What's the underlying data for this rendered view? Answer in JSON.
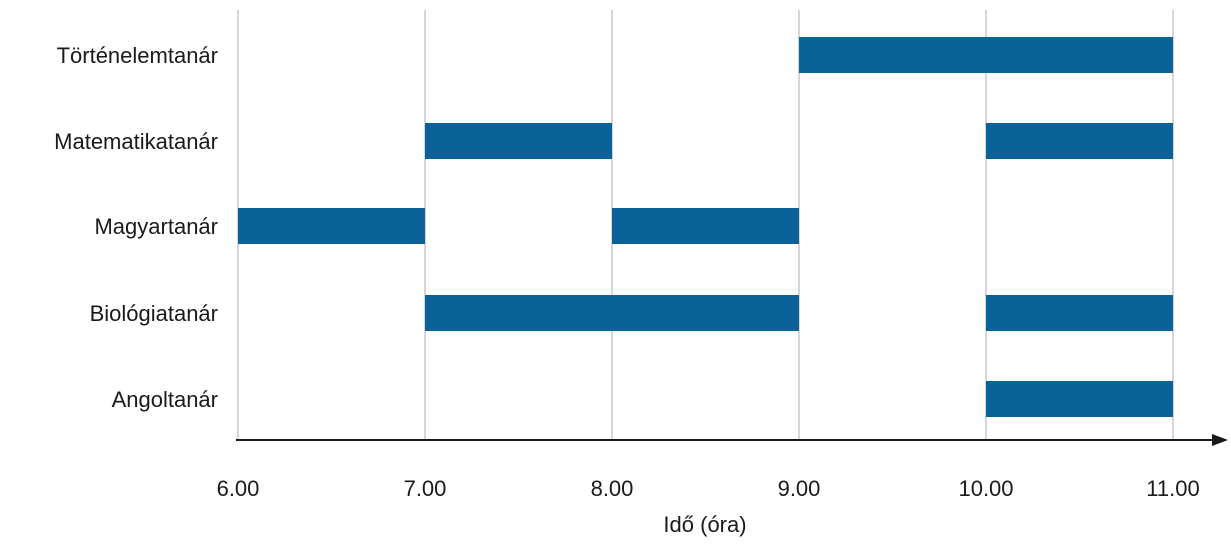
{
  "chart_data": {
    "type": "bar",
    "subtype": "gantt",
    "title": "",
    "xlabel": "Idő (óra)",
    "ylabel": "",
    "xlim": [
      6,
      11
    ],
    "grid": true,
    "bar_color": "#0b6299",
    "x_ticks": [
      "6.00",
      "7.00",
      "8.00",
      "9.00",
      "10.00",
      "11.00"
    ],
    "tasks": [
      {
        "name": "Történelemtanár",
        "intervals": [
          [
            9,
            11
          ]
        ]
      },
      {
        "name": "Matematikatanár",
        "intervals": [
          [
            7,
            8
          ],
          [
            10,
            11
          ]
        ]
      },
      {
        "name": "Magyartanár",
        "intervals": [
          [
            6,
            7
          ],
          [
            8,
            9
          ]
        ]
      },
      {
        "name": "Biológiatanár",
        "intervals": [
          [
            7,
            9
          ],
          [
            10,
            11
          ]
        ]
      },
      {
        "name": "Angoltanár",
        "intervals": [
          [
            10,
            11
          ]
        ]
      }
    ]
  }
}
